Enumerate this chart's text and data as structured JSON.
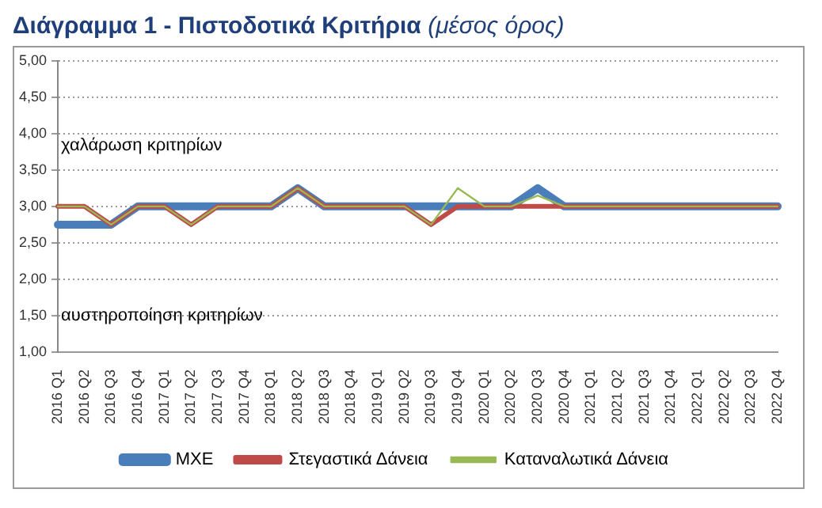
{
  "chart_data": {
    "type": "line",
    "title": "Διάγραμμα 1 - Πιστοδοτικά Κριτήρια",
    "subtitle": "(μέσος όρος)",
    "categories": [
      "2016 Q1",
      "2016 Q2",
      "2016 Q3",
      "2016 Q4",
      "2017 Q1",
      "2017 Q2",
      "2017 Q3",
      "2017 Q4",
      "2018 Q1",
      "2018 Q2",
      "2018 Q3",
      "2018 Q4",
      "2019 Q1",
      "2019 Q2",
      "2019 Q3",
      "2019 Q4",
      "2020 Q1",
      "2020 Q2",
      "2020 Q3",
      "2020 Q4",
      "2021 Q1",
      "2021 Q2",
      "2021 Q3",
      "2021 Q4",
      "2022 Q1",
      "2022 Q2",
      "2022 Q3",
      "2022 Q4"
    ],
    "series": [
      {
        "name": "ΜΧΕ",
        "color": "#4a7ebb",
        "values": [
          2.75,
          2.75,
          2.75,
          3,
          3,
          3,
          3,
          3,
          3,
          3.25,
          3,
          3,
          3,
          3,
          3,
          3,
          3,
          3,
          3.25,
          3,
          3,
          3,
          3,
          3,
          3,
          3,
          3,
          3
        ]
      },
      {
        "name": "Στεγαστικά Δάνεια",
        "color": "#be4b48",
        "values": [
          3,
          3,
          2.75,
          3,
          3,
          2.75,
          3,
          3,
          3,
          3.25,
          3,
          3,
          3,
          3,
          2.75,
          3,
          3,
          3,
          3,
          3,
          3,
          3,
          3,
          3,
          3,
          3,
          3,
          3
        ]
      },
      {
        "name": "Καταναλωτικά Δάνεια",
        "color": "#98b954",
        "values": [
          3,
          3,
          2.75,
          3,
          3,
          2.75,
          3,
          3,
          3,
          3.25,
          3,
          3,
          3,
          3,
          2.75,
          3.25,
          3,
          3,
          3.15,
          3,
          3,
          3,
          3,
          3,
          3,
          3,
          3,
          3
        ]
      }
    ],
    "ylim": [
      1,
      5
    ],
    "yticks": [
      {
        "value": 1,
        "label": "1,00"
      },
      {
        "value": 1.5,
        "label": "1,50"
      },
      {
        "value": 2,
        "label": "2,00"
      },
      {
        "value": 2.5,
        "label": "2,50"
      },
      {
        "value": 3,
        "label": "3,00"
      },
      {
        "value": 3.5,
        "label": "3,50"
      },
      {
        "value": 4,
        "label": "4,00"
      },
      {
        "value": 4.5,
        "label": "4,50"
      },
      {
        "value": 5,
        "label": "5,00"
      }
    ],
    "grid": "y",
    "legend": "bottom",
    "marker": "none",
    "line_style": "solid",
    "annotations": [
      "χαλάρωση κριτηρίων",
      "αυστηροποίηση κριτηρίων"
    ]
  }
}
